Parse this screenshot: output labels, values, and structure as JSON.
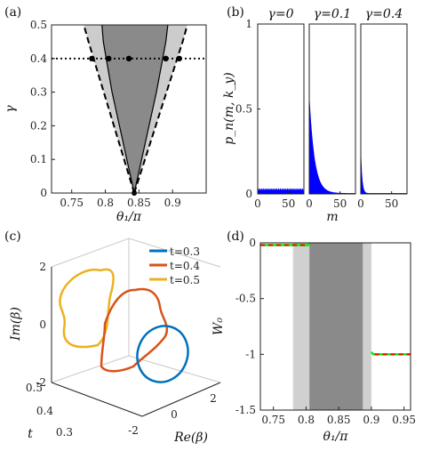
{
  "chart_data": [
    {
      "panel": "(a)",
      "type": "area",
      "xlabel": "θ₁/π",
      "ylabel": "γ",
      "xlim": [
        0.72,
        0.95
      ],
      "ylim": [
        0,
        0.5
      ],
      "xticks": [
        "0.75",
        "0.8",
        "0.85",
        "0.9"
      ],
      "yticks": [
        "0",
        "0.1",
        "0.2",
        "0.3",
        "0.4",
        "0.5"
      ],
      "apex": [
        0.843,
        0
      ],
      "outer_left": [
        [
          0.843,
          0
        ],
        [
          0.775,
          0.45
        ],
        [
          0.768,
          0.5
        ]
      ],
      "outer_right": [
        [
          0.843,
          0
        ],
        [
          0.915,
          0.45
        ],
        [
          0.922,
          0.5
        ]
      ],
      "inner_left": [
        [
          0.843,
          0
        ],
        [
          0.81,
          0.3
        ],
        [
          0.797,
          0.45
        ],
        [
          0.795,
          0.5
        ]
      ],
      "inner_right": [
        [
          0.843,
          0
        ],
        [
          0.876,
          0.3
        ],
        [
          0.89,
          0.45
        ],
        [
          0.893,
          0.5
        ]
      ],
      "dotted_line_gamma": 0.4,
      "points": [
        [
          0.78,
          0.4
        ],
        [
          0.805,
          0.4
        ],
        [
          0.835,
          0.4
        ],
        [
          0.89,
          0.4
        ],
        [
          0.91,
          0.4
        ]
      ]
    },
    {
      "panel": "(b)",
      "type": "bar",
      "xlabel": "m",
      "ylabel": "p_n(m, k_y)",
      "xlim": [
        0,
        75
      ],
      "ylim": [
        0,
        1
      ],
      "xticks": [
        "0",
        "50",
        "0",
        "50",
        "0",
        "50"
      ],
      "yticks": [
        "0",
        "0.5",
        "1"
      ],
      "series": [
        {
          "name": "γ=0",
          "peak": 0.025,
          "decay": 0
        },
        {
          "name": "γ=0.1",
          "peak": 0.57,
          "decay": 0.12
        },
        {
          "name": "γ=0.4",
          "peak": 0.26,
          "decay": 0.5
        }
      ],
      "color": "#0000ff"
    },
    {
      "panel": "(c)",
      "type": "line",
      "xlabel": "Re(β)",
      "ylabel": "Im(β)",
      "zlabel": "t",
      "xticks": [
        "-2",
        "0",
        "2"
      ],
      "zticks": [
        "0.3",
        "0.4",
        "0.5"
      ],
      "yticks": [
        "-2",
        "0",
        "2"
      ],
      "series": [
        {
          "name": "t=0.3",
          "color": "#0072bd"
        },
        {
          "name": "t=0.4",
          "color": "#d95319"
        },
        {
          "name": "t=0.5",
          "color": "#edb120"
        }
      ]
    },
    {
      "panel": "(d)",
      "type": "line",
      "xlabel": "θ₁/π",
      "ylabel": "W₀",
      "xlim": [
        0.73,
        0.96
      ],
      "ylim": [
        -1.5,
        0
      ],
      "xticks": [
        "0.75",
        "0.8",
        "0.85",
        "0.9",
        "0.95"
      ],
      "yticks": [
        "-1.5",
        "-1",
        "-0.5",
        "0"
      ],
      "bands": [
        {
          "from": 0.78,
          "to": 0.805,
          "shade": "light"
        },
        {
          "from": 0.805,
          "to": 0.887,
          "shade": "dark"
        },
        {
          "from": 0.887,
          "to": 0.9,
          "shade": "light"
        }
      ],
      "series": [
        {
          "color": "#00ee00",
          "points": [
            [
              0.73,
              -0.02
            ],
            [
              0.803,
              -0.02
            ],
            [
              0.806,
              0.0
            ]
          ]
        },
        {
          "color": "#00ee00",
          "points": [
            [
              0.9,
              -0.98
            ],
            [
              0.903,
              -1.0
            ],
            [
              0.96,
              -1.0
            ]
          ]
        },
        {
          "color": "#ee0000",
          "style": "dashed",
          "points": [
            [
              0.73,
              -0.02
            ],
            [
              0.8,
              -0.02
            ]
          ]
        },
        {
          "color": "#ee0000",
          "style": "dashed",
          "points": [
            [
              0.905,
              -1.0
            ],
            [
              0.96,
              -1.0
            ]
          ]
        }
      ]
    }
  ],
  "panel_labels": [
    "(a)",
    "(b)",
    "(c)",
    "(d)"
  ]
}
